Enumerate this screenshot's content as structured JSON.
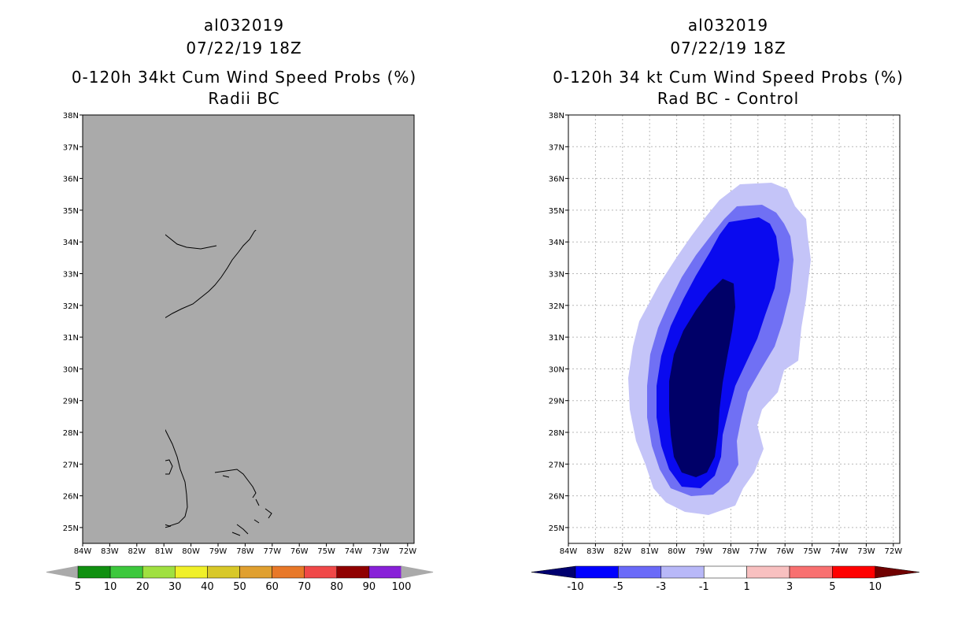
{
  "left_panel": {
    "storm_id": "al032019",
    "datetime": "07/22/19 18Z",
    "product": "0-120h 34kt Cum Wind Speed Probs (%)",
    "subtitle": "Radii BC",
    "map_fill": "#aaaaaa",
    "colorbar": {
      "labels": [
        "5",
        "10",
        "20",
        "30",
        "40",
        "50",
        "60",
        "70",
        "80",
        "90",
        "100"
      ],
      "colors": [
        "#109010",
        "#3cc83c",
        "#a0e040",
        "#f0f028",
        "#d8c828",
        "#e0a030",
        "#e87828",
        "#f04848",
        "#900000",
        "#8820d8"
      ],
      "end_color": "#aaaaaa"
    }
  },
  "right_panel": {
    "storm_id": "al032019",
    "datetime": "07/22/19 18Z",
    "product": "0-120h 34 kt Cum Wind Speed Probs (%)",
    "subtitle": "Rad BC - Control",
    "colorbar": {
      "labels": [
        "-10",
        "-5",
        "-3",
        "-1",
        "1",
        "3",
        "5",
        "10"
      ],
      "colors": [
        "#0000ff",
        "#6a6af8",
        "#b8b8f8",
        "#ffffff",
        "#f8c0c0",
        "#f87070",
        "#ff0000"
      ],
      "left_end": "#000070",
      "right_end": "#700000"
    }
  },
  "axes": {
    "lat_labels": [
      "38N",
      "37N",
      "36N",
      "35N",
      "34N",
      "33N",
      "32N",
      "31N",
      "30N",
      "29N",
      "28N",
      "27N",
      "26N",
      "25N"
    ],
    "lon_labels": [
      "84W",
      "83W",
      "82W",
      "81W",
      "80W",
      "79W",
      "78W",
      "77W",
      "76W",
      "75W",
      "74W",
      "73W",
      "72W"
    ]
  }
}
